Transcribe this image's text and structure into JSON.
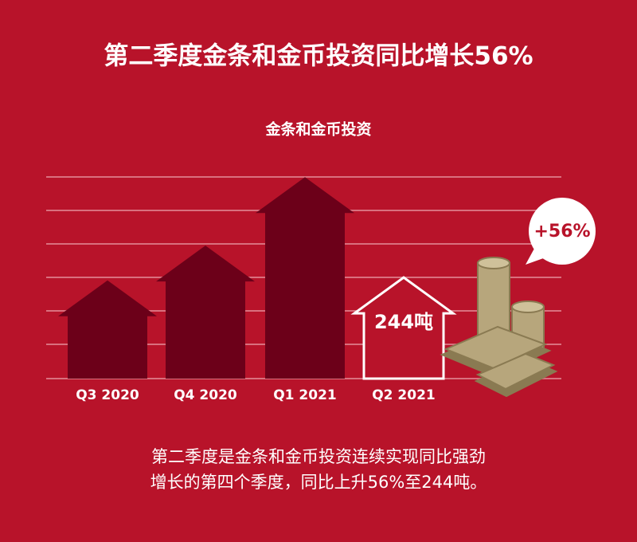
{
  "chart_data": {
    "type": "house-bar",
    "title": "第二季度金条和金币投资同比增长56%",
    "subtitle": "金条和金币投资",
    "categories": [
      "Q3 2020",
      "Q4 2020",
      "Q1 2021",
      "Q2 2021"
    ],
    "values": [
      237,
      321,
      486,
      244
    ],
    "value_labels": [
      null,
      null,
      null,
      "244吨"
    ],
    "colors": [
      "#6c0019",
      "#6c0019",
      "#6c0019",
      "#b8132a"
    ],
    "ylim": [
      0,
      500
    ],
    "badge": "+56%",
    "caption": [
      "第二季度是金条和金币投资连续实现同比强劲",
      "增长的第四个季度，同比上升56%至244吨。"
    ]
  }
}
